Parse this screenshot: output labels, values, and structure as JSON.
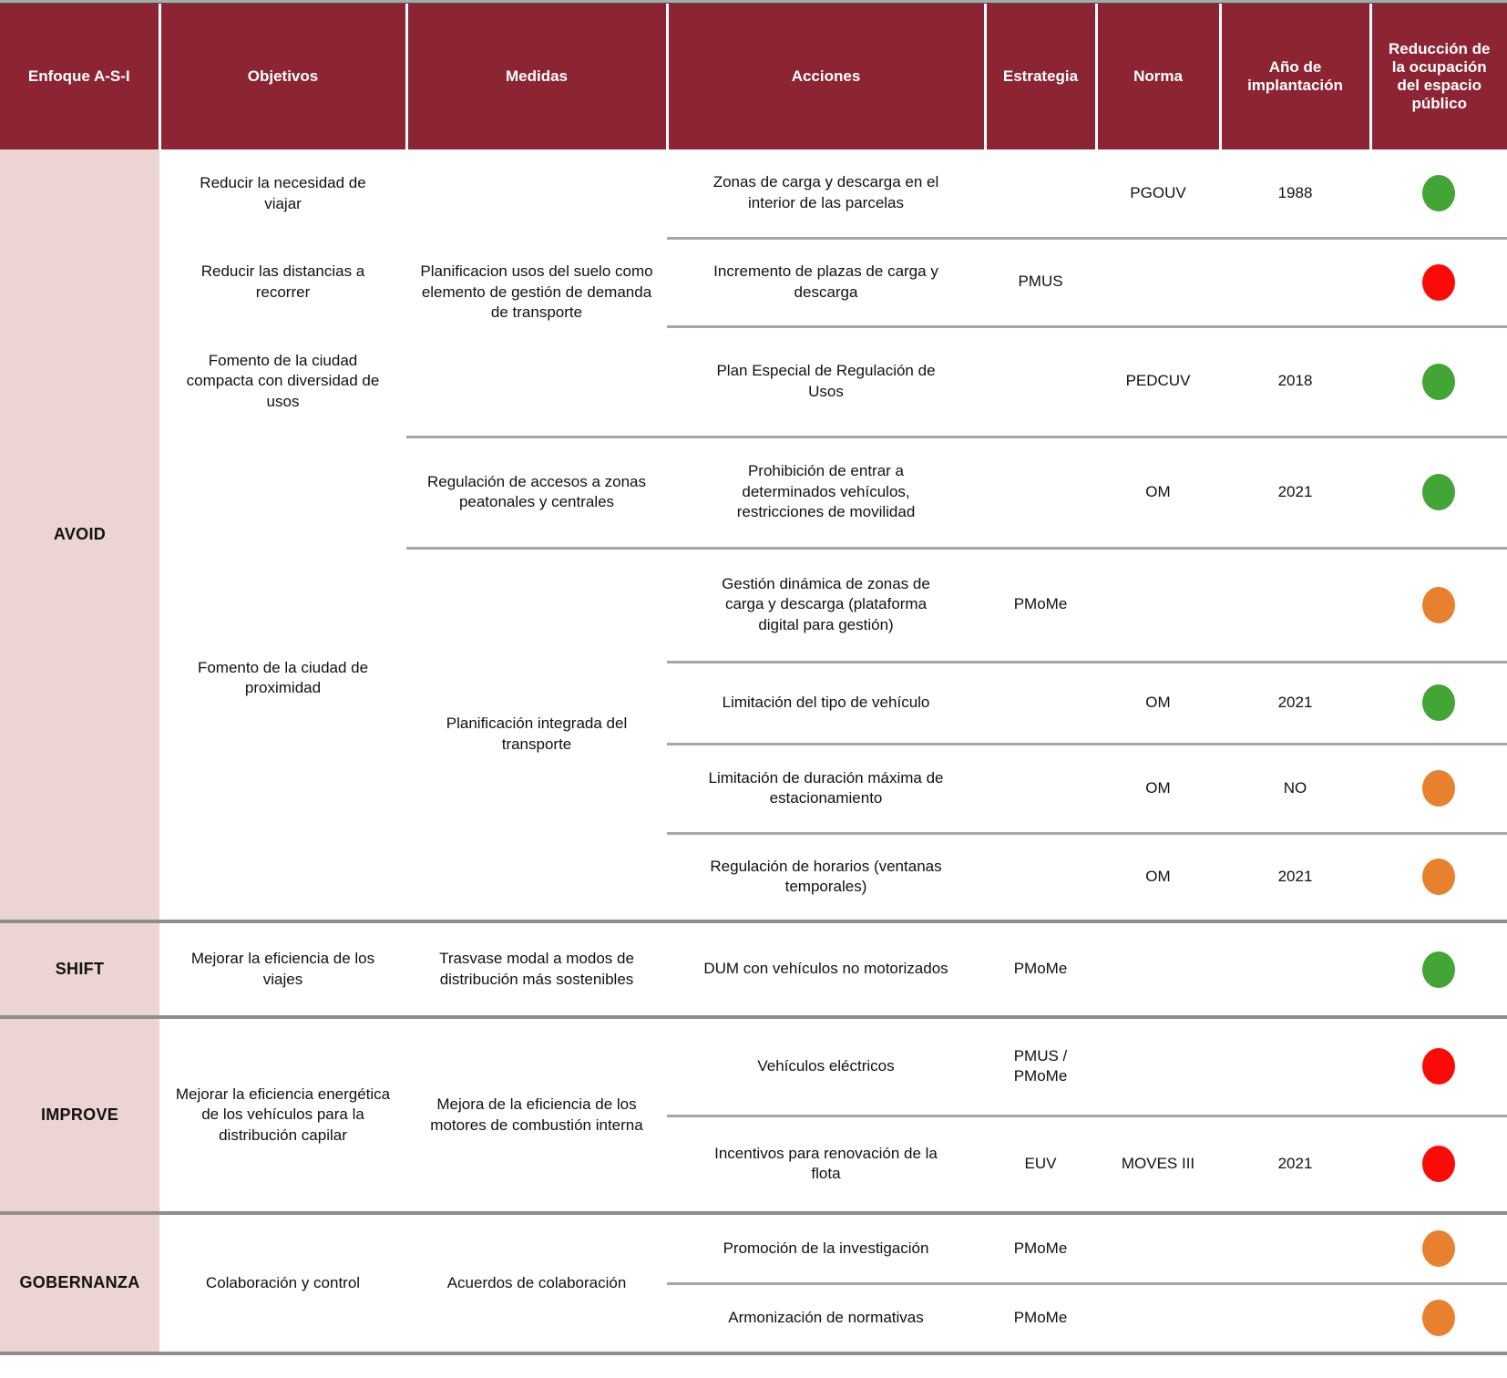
{
  "header": {
    "columns": [
      "Enfoque A-S-I",
      "Objetivos",
      "Medidas",
      "Acciones",
      "Estrategia",
      "Norma",
      "Año de implantación",
      "Reducción de la ocupación del espacio público"
    ]
  },
  "colors": {
    "header_bg": "#8c2433",
    "enfoque_bg": "#ebd4d1",
    "divider": "#a6a6a6",
    "section_divider": "#8e8e8e",
    "green": "#43a535",
    "red": "#fb0b07",
    "orange": "#e8812d"
  },
  "groups": [
    {
      "enfoque": "AVOID",
      "objetivos": [
        "Reducir la necesidad de viajar",
        "Reducir las distancias a recorrer",
        "Fomento de la ciudad compacta con diversidad de usos",
        "Fomento de la ciudad de proximidad"
      ],
      "medidas": [
        {
          "label": "Planificacion usos del suelo como elemento de gestión de demanda de transporte",
          "acciones": [
            {
              "accion": "Zonas de carga y descarga en el interior de las parcelas",
              "estrategia": "",
              "norma": "PGOUV",
              "anio": "1988",
              "estado": "green"
            },
            {
              "accion": "Incremento de plazas de carga y descarga",
              "estrategia": "PMUS",
              "norma": "",
              "anio": "",
              "estado": "red"
            },
            {
              "accion": "Plan Especial de Regulación de Usos",
              "estrategia": "",
              "norma": "PEDCUV",
              "anio": "2018",
              "estado": "green"
            }
          ]
        },
        {
          "label": "Regulación de accesos a zonas peatonales y centrales",
          "acciones": [
            {
              "accion": "Prohibición de entrar a determinados vehículos, restricciones de movilidad",
              "estrategia": "",
              "norma": "OM",
              "anio": "2021",
              "estado": "green"
            }
          ]
        },
        {
          "label": "Planificación integrada del transporte",
          "acciones": [
            {
              "accion": "Gestión dinámica de zonas de carga y descarga (plataforma digital para gestión)",
              "estrategia": "PMoMe",
              "norma": "",
              "anio": "",
              "estado": "orange"
            },
            {
              "accion": "Limitación del tipo de vehículo",
              "estrategia": "",
              "norma": "OM",
              "anio": "2021",
              "estado": "green"
            },
            {
              "accion": "Limitación de duración máxima de estacionamiento",
              "estrategia": "",
              "norma": "OM",
              "anio": "NO",
              "estado": "orange"
            },
            {
              "accion": "Regulación de horarios (ventanas temporales)",
              "estrategia": "",
              "norma": "OM",
              "anio": "2021",
              "estado": "orange"
            }
          ]
        }
      ]
    },
    {
      "enfoque": "SHIFT",
      "objetivos": [
        "Mejorar la eficiencia de los viajes"
      ],
      "medidas": [
        {
          "label": "Trasvase modal a modos de distribución más sostenibles",
          "acciones": [
            {
              "accion": "DUM con vehículos no motorizados",
              "estrategia": "PMoMe",
              "norma": "",
              "anio": "",
              "estado": "green"
            }
          ]
        }
      ]
    },
    {
      "enfoque": "IMPROVE",
      "objetivos": [
        "Mejorar la eficiencia energética de los vehículos para la distribución capilar"
      ],
      "medidas": [
        {
          "label": "Mejora de la eficiencia de los motores de combustión interna",
          "acciones": [
            {
              "accion": "Vehículos eléctricos",
              "estrategia": "PMUS / PMoMe",
              "norma": "",
              "anio": "",
              "estado": "red"
            },
            {
              "accion": "Incentivos para renovación de la flota",
              "estrategia": "EUV",
              "norma": "MOVES III",
              "anio": "2021",
              "estado": "red"
            }
          ]
        }
      ]
    },
    {
      "enfoque": "GOBERNANZA",
      "objetivos": [
        "Colaboración y control"
      ],
      "medidas": [
        {
          "label": "Acuerdos de colaboración",
          "acciones": [
            {
              "accion": "Promoción de la investigación",
              "estrategia": "PMoMe",
              "norma": "",
              "anio": "",
              "estado": "orange"
            },
            {
              "accion": "Armonización de normativas",
              "estrategia": "PMoMe",
              "norma": "",
              "anio": "",
              "estado": "orange"
            }
          ]
        }
      ]
    }
  ]
}
